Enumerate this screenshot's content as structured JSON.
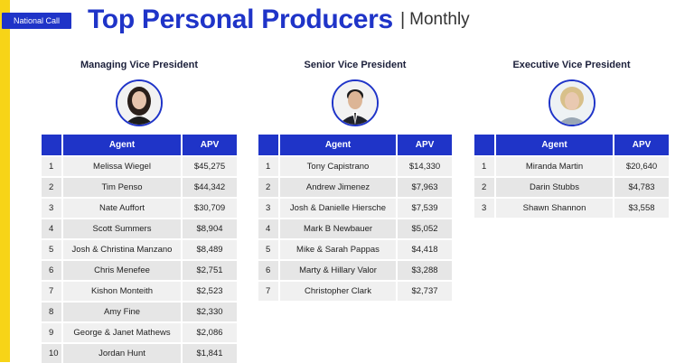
{
  "tag": "National Call",
  "title": {
    "main": "Top Personal Producers",
    "separator": "|",
    "sub": "Monthly"
  },
  "table_headers": {
    "agent": "Agent",
    "apv": "APV"
  },
  "columns": [
    {
      "heading": "Managing Vice President",
      "rows": [
        {
          "rank": "1",
          "agent": "Melissa Wiegel",
          "apv": "$45,275"
        },
        {
          "rank": "2",
          "agent": "Tim Penso",
          "apv": "$44,342"
        },
        {
          "rank": "3",
          "agent": "Nate Auffort",
          "apv": "$30,709"
        },
        {
          "rank": "4",
          "agent": "Scott Summers",
          "apv": "$8,904"
        },
        {
          "rank": "5",
          "agent": "Josh & Christina Manzano",
          "apv": "$8,489"
        },
        {
          "rank": "6",
          "agent": "Chris Menefee",
          "apv": "$2,751"
        },
        {
          "rank": "7",
          "agent": "Kishon Monteith",
          "apv": "$2,523"
        },
        {
          "rank": "8",
          "agent": "Amy Fine",
          "apv": "$2,330"
        },
        {
          "rank": "9",
          "agent": "George & Janet Mathews",
          "apv": "$2,086"
        },
        {
          "rank": "10",
          "agent": "Jordan Hunt",
          "apv": "$1,841"
        }
      ]
    },
    {
      "heading": "Senior Vice President",
      "rows": [
        {
          "rank": "1",
          "agent": "Tony Capistrano",
          "apv": "$14,330"
        },
        {
          "rank": "2",
          "agent": "Andrew Jimenez",
          "apv": "$7,963"
        },
        {
          "rank": "3",
          "agent": "Josh & Danielle Hiersche",
          "apv": "$7,539"
        },
        {
          "rank": "4",
          "agent": "Mark B Newbauer",
          "apv": "$5,052"
        },
        {
          "rank": "5",
          "agent": "Mike & Sarah Pappas",
          "apv": "$4,418"
        },
        {
          "rank": "6",
          "agent": "Marty & Hillary Valor",
          "apv": "$3,288"
        },
        {
          "rank": "7",
          "agent": "Christopher Clark",
          "apv": "$2,737"
        }
      ]
    },
    {
      "heading": "Executive Vice President",
      "rows": [
        {
          "rank": "1",
          "agent": "Miranda Martin",
          "apv": "$20,640"
        },
        {
          "rank": "2",
          "agent": "Darin Stubbs",
          "apv": "$4,783"
        },
        {
          "rank": "3",
          "agent": "Shawn Shannon",
          "apv": "$3,558"
        }
      ]
    }
  ],
  "colors": {
    "brand_blue": "#1f34c8",
    "accent_yellow": "#f7d417"
  }
}
